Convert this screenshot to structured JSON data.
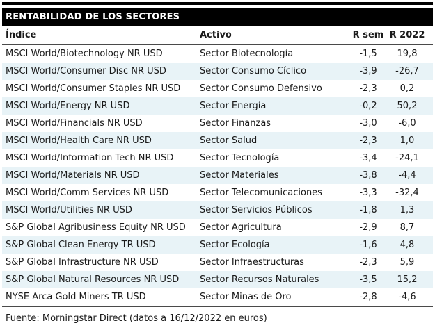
{
  "title": "RENTABILIDAD DE LOS SECTORES",
  "source_note": "Fuente: Morningstar Direct (datos a 16/12/2022 en euros)",
  "colors": {
    "title_bar_bg": "#000000",
    "title_bar_text": "#ffffff",
    "alt_row_bg": "#e8f3f7",
    "text": "#1a1a1a",
    "rule_black": "#000000",
    "rule_gray": "#4a4a4a"
  },
  "table": {
    "columns": [
      {
        "key": "indice",
        "label": "Índice",
        "align": "left"
      },
      {
        "key": "activo",
        "label": "Activo",
        "align": "left"
      },
      {
        "key": "r_sem",
        "label": "R sem",
        "align": "center"
      },
      {
        "key": "r_2022",
        "label": "R 2022",
        "align": "center"
      }
    ],
    "rows": [
      {
        "indice": "MSCI World/Biotechnology NR USD",
        "activo": "Sector Biotecnología",
        "r_sem": "-1,5",
        "r_2022": "19,8"
      },
      {
        "indice": "MSCI World/Consumer Disc NR USD",
        "activo": "Sector Consumo Cíclico",
        "r_sem": "-3,9",
        "r_2022": "-26,7"
      },
      {
        "indice": "MSCI World/Consumer Staples NR USD",
        "activo": "Sector Consumo Defensivo",
        "r_sem": "-2,3",
        "r_2022": "0,2"
      },
      {
        "indice": "MSCI World/Energy NR USD",
        "activo": "Sector Energía",
        "r_sem": "-0,2",
        "r_2022": "50,2"
      },
      {
        "indice": "MSCI World/Financials NR USD",
        "activo": "Sector Finanzas",
        "r_sem": "-3,0",
        "r_2022": "-6,0"
      },
      {
        "indice": "MSCI World/Health Care NR USD",
        "activo": "Sector Salud",
        "r_sem": "-2,3",
        "r_2022": "1,0"
      },
      {
        "indice": "MSCI World/Information Tech NR USD",
        "activo": "Sector Tecnología",
        "r_sem": "-3,4",
        "r_2022": "-24,1"
      },
      {
        "indice": "MSCI World/Materials NR USD",
        "activo": "Sector Materiales",
        "r_sem": "-3,8",
        "r_2022": "-4,4"
      },
      {
        "indice": "MSCI World/Comm Services NR USD",
        "activo": "Sector Telecomunicaciones",
        "r_sem": "-3,3",
        "r_2022": "-32,4"
      },
      {
        "indice": "MSCI World/Utilities NR USD",
        "activo": "Sector Servicios Públicos",
        "r_sem": "-1,8",
        "r_2022": "1,3"
      },
      {
        "indice": "S&P Global Agribusiness Equity NR USD",
        "activo": "Sector Agricultura",
        "r_sem": "-2,9",
        "r_2022": "8,7"
      },
      {
        "indice": "S&P Global Clean Energy TR USD",
        "activo": "Sector Ecología",
        "r_sem": "-1,6",
        "r_2022": "4,8"
      },
      {
        "indice": "S&P Global Infrastructure NR USD",
        "activo": "Sector Infraestructuras",
        "r_sem": "-2,3",
        "r_2022": "5,9"
      },
      {
        "indice": "S&P Global Natural Resources NR USD",
        "activo": "Sector Recursos Naturales",
        "r_sem": "-3,5",
        "r_2022": "15,2"
      },
      {
        "indice": "NYSE Arca Gold Miners TR USD",
        "activo": "Sector Minas de Oro",
        "r_sem": "-2,8",
        "r_2022": "-4,6"
      }
    ]
  },
  "chart_data": {
    "type": "table",
    "title": "RENTABILIDAD DE LOS SECTORES",
    "columns": [
      "Índice",
      "Activo",
      "R sem",
      "R 2022"
    ],
    "rows": [
      [
        "MSCI World/Biotechnology NR USD",
        "Sector Biotecnología",
        "-1,5",
        "19,8"
      ],
      [
        "MSCI World/Consumer Disc NR USD",
        "Sector Consumo Cíclico",
        "-3,9",
        "-26,7"
      ],
      [
        "MSCI World/Consumer Staples NR USD",
        "Sector Consumo Defensivo",
        "-2,3",
        "0,2"
      ],
      [
        "MSCI World/Energy NR USD",
        "Sector Energía",
        "-0,2",
        "50,2"
      ],
      [
        "MSCI World/Financials NR USD",
        "Sector Finanzas",
        "-3,0",
        "-6,0"
      ],
      [
        "MSCI World/Health Care NR USD",
        "Sector Salud",
        "-2,3",
        "1,0"
      ],
      [
        "MSCI World/Information Tech NR USD",
        "Sector Tecnología",
        "-3,4",
        "-24,1"
      ],
      [
        "MSCI World/Materials NR USD",
        "Sector Materiales",
        "-3,8",
        "-4,4"
      ],
      [
        "MSCI World/Comm Services NR USD",
        "Sector Telecomunicaciones",
        "-3,3",
        "-32,4"
      ],
      [
        "MSCI World/Utilities NR USD",
        "Sector Servicios Públicos",
        "-1,8",
        "1,3"
      ],
      [
        "S&P Global Agribusiness Equity NR USD",
        "Sector Agricultura",
        "-2,9",
        "8,7"
      ],
      [
        "S&P Global Clean Energy TR USD",
        "Sector Ecología",
        "-1,6",
        "4,8"
      ],
      [
        "S&P Global Infrastructure NR USD",
        "Sector Infraestructuras",
        "-2,3",
        "5,9"
      ],
      [
        "S&P Global Natural Resources NR USD",
        "Sector Recursos Naturales",
        "-3,5",
        "15,2"
      ],
      [
        "NYSE Arca Gold Miners TR USD",
        "Sector Minas de Oro",
        "-2,8",
        "-4,6"
      ]
    ],
    "values_numeric": {
      "r_sem": [
        -1.5,
        -3.9,
        -2.3,
        -0.2,
        -3.0,
        -2.3,
        -3.4,
        -3.8,
        -3.3,
        -1.8,
        -2.9,
        -1.6,
        -2.3,
        -3.5,
        -2.8
      ],
      "r_2022": [
        19.8,
        -26.7,
        0.2,
        50.2,
        -6.0,
        1.0,
        -24.1,
        -4.4,
        -32.4,
        1.3,
        8.7,
        4.8,
        5.9,
        15.2,
        -4.6
      ]
    },
    "decimal_separator": ",",
    "source": "Fuente: Morningstar Direct (datos a 16/12/2022 en euros)"
  }
}
